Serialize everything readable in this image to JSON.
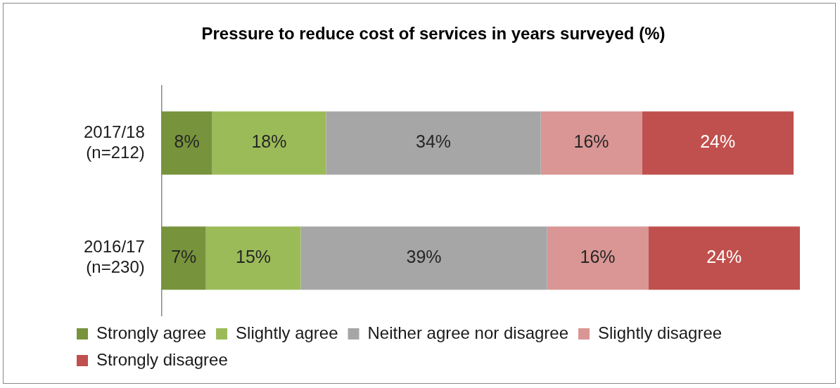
{
  "chart_data": {
    "type": "bar",
    "orientation": "horizontal",
    "stacked": true,
    "title": "Pressure to reduce cost of services in years surveyed (%)",
    "categories": [
      "2017/18\n(n=212)",
      "2016/17\n(n=230)"
    ],
    "series": [
      {
        "name": "Strongly agree",
        "color": "#77933c",
        "values": [
          8,
          7
        ],
        "value_labels": [
          "8%",
          "7%"
        ]
      },
      {
        "name": "Slightly agree",
        "color": "#9bbb59",
        "values": [
          18,
          15
        ],
        "value_labels": [
          "18%",
          "15%"
        ]
      },
      {
        "name": "Neither agree nor disagree",
        "color": "#a6a6a6",
        "values": [
          34,
          39
        ],
        "value_labels": [
          "34%",
          "39%"
        ]
      },
      {
        "name": "Slightly disagree",
        "color": "#d99694",
        "values": [
          16,
          16
        ],
        "value_labels": [
          "16%",
          "16%"
        ]
      },
      {
        "name": "Strongly disagree",
        "color": "#c0504d",
        "values": [
          24,
          24
        ],
        "value_labels": [
          "24%",
          "24%"
        ]
      }
    ],
    "xlim": [
      0,
      101
    ],
    "tick_labels": "y",
    "legend": "bottom"
  }
}
